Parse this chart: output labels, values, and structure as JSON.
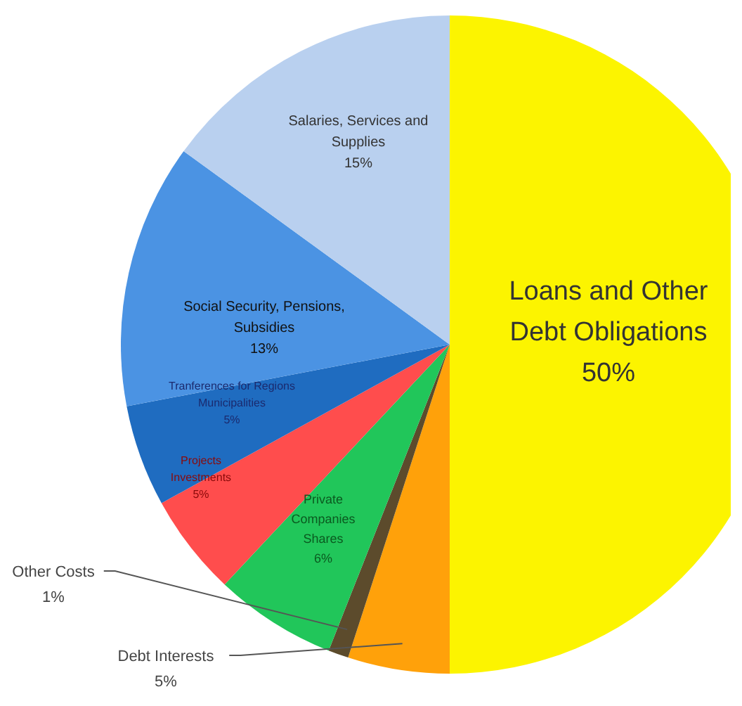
{
  "chart_data": {
    "type": "pie",
    "categories": [
      "Loans and Other Debt Obligations",
      "Debt Interests",
      "Other Costs",
      "Private Companies Shares",
      "Projects Investments",
      "Tranferences for Regions Municipalities",
      "Social Security, Pensions, Subsidies",
      "Salaries, Services and Supplies"
    ],
    "values": [
      50,
      5,
      1,
      6,
      5,
      5,
      13,
      15
    ],
    "colors": [
      "#fcf400",
      "#ffa10a",
      "#5c4b2c",
      "#21c65a",
      "#ff4d4d",
      "#1f6cc0",
      "#4b93e3",
      "#b9d0ef"
    ],
    "value_labels": [
      "50%",
      "5%",
      "1%",
      "6%",
      "5%",
      "5%",
      "13%",
      "15%"
    ]
  }
}
